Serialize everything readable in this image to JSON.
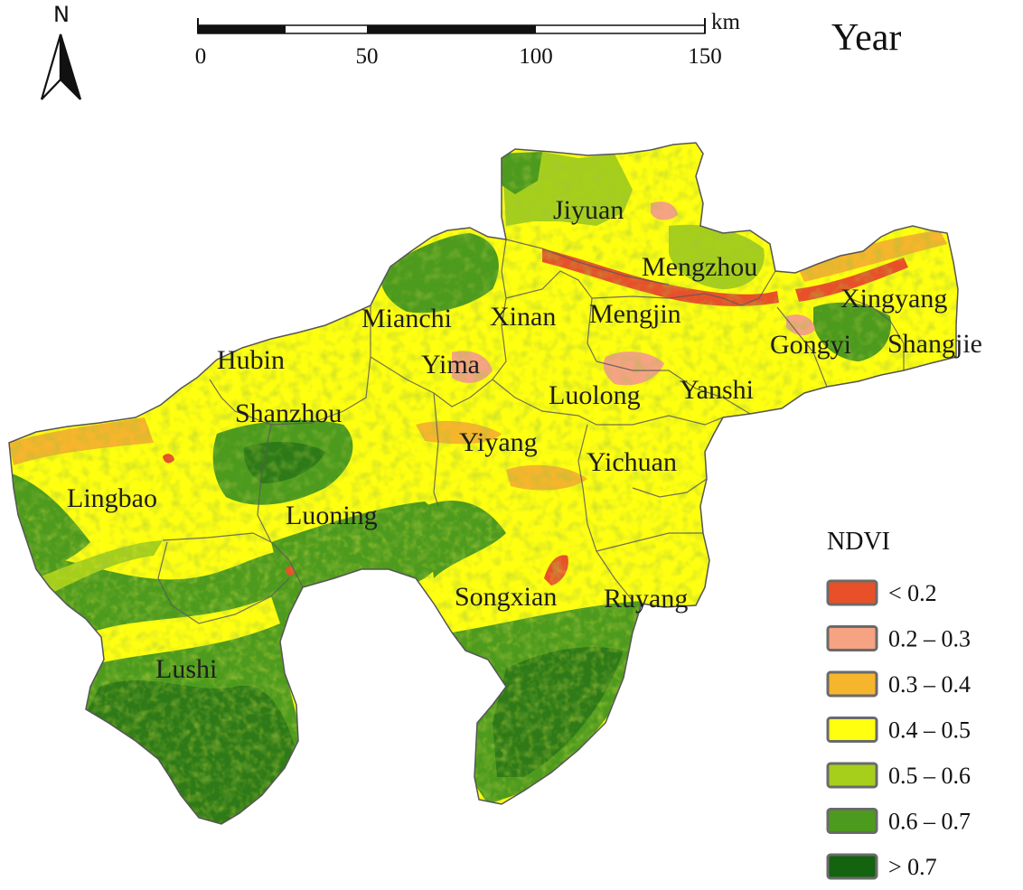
{
  "title": "Year",
  "north_label": "N",
  "scale_bar": {
    "unit": "km",
    "ticks": [
      "0",
      "50",
      "100",
      "150"
    ]
  },
  "legend": {
    "title": "NDVI",
    "items": [
      {
        "label": "< 0.2",
        "color": "#e8502a"
      },
      {
        "label": "0.2 – 0.3",
        "color": "#f5a383"
      },
      {
        "label": "0.3 – 0.4",
        "color": "#f5b52c"
      },
      {
        "label": "0.4 – 0.5",
        "color": "#ffff10"
      },
      {
        "label": "0.5 – 0.6",
        "color": "#a6cf1c"
      },
      {
        "label": "0.6 – 0.7",
        "color": "#4c9a1e"
      },
      {
        "label": "> 0.7",
        "color": "#13630f"
      }
    ]
  },
  "places": {
    "jiyuan": "Jiyuan",
    "mengzhou": "Mengzhou",
    "xingyang": "Xingyang",
    "mianchi": "Mianchi",
    "xinan": "Xinan",
    "mengjin": "Mengjin",
    "gongyi": "Gongyi",
    "shangjie": "Shangjie",
    "hubin": "Hubin",
    "yima": "Yima",
    "luolong": "Luolong",
    "yanshi": "Yanshi",
    "shanzhou": "Shanzhou",
    "yiyang": "Yiyang",
    "yichuan": "Yichuan",
    "lingbao": "Lingbao",
    "luoning": "Luoning",
    "songxian": "Songxian",
    "ruyang": "Ruyang",
    "lushi": "Lushi"
  }
}
